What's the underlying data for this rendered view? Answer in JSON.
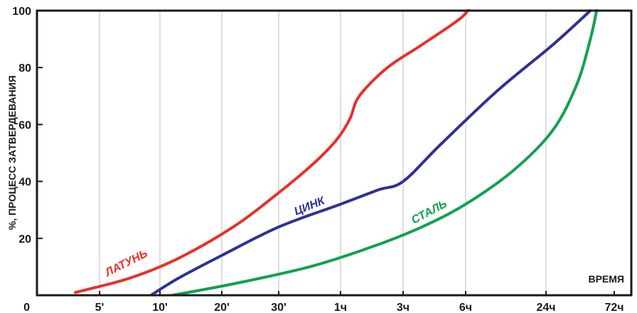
{
  "chart_data": {
    "type": "line",
    "ylabel": "%, ПРОЦЕСС ЗАТВЕРДЕВАНИЯ",
    "xlabel": "ВРЕМЯ",
    "ylim": [
      0,
      100
    ],
    "y_ticks": [
      "0",
      "20",
      "40",
      "60",
      "80",
      "100"
    ],
    "x_categories": [
      "5'",
      "10'",
      "20'",
      "30'",
      "1ч",
      "3ч",
      "6ч",
      "24ч",
      "72ч"
    ],
    "grid": "vertical",
    "series": [
      {
        "name": "ЛАТУНЬ",
        "color": "#e8302a",
        "points": [
          [
            -0.4,
            1
          ],
          [
            0.5,
            6
          ],
          [
            1.3,
            13
          ],
          [
            2.2,
            24
          ],
          [
            3.0,
            36
          ],
          [
            3.6,
            47
          ],
          [
            3.95,
            55
          ],
          [
            4.15,
            62
          ],
          [
            4.3,
            70
          ],
          [
            4.75,
            80
          ],
          [
            5.3,
            88
          ],
          [
            5.9,
            97
          ],
          [
            6.05,
            101
          ]
        ]
      },
      {
        "name": "ЦИНК",
        "color": "#2e3192",
        "points": [
          [
            0.85,
            0
          ],
          [
            1.3,
            6
          ],
          [
            2.0,
            14
          ],
          [
            3.0,
            24
          ],
          [
            4.0,
            32
          ],
          [
            4.6,
            37
          ],
          [
            5.0,
            40
          ],
          [
            5.6,
            53
          ],
          [
            6.4,
            72
          ],
          [
            7.1,
            88
          ],
          [
            7.65,
            100
          ]
        ]
      },
      {
        "name": "СТАЛЬ",
        "color": "#13a050",
        "points": [
          [
            1.2,
            0
          ],
          [
            2.2,
            4
          ],
          [
            3.5,
            10
          ],
          [
            4.5,
            17
          ],
          [
            5.3,
            24
          ],
          [
            6.0,
            32
          ],
          [
            6.6,
            44
          ],
          [
            7.1,
            58
          ],
          [
            7.45,
            74
          ],
          [
            7.65,
            90
          ],
          [
            7.75,
            101
          ]
        ]
      }
    ]
  }
}
